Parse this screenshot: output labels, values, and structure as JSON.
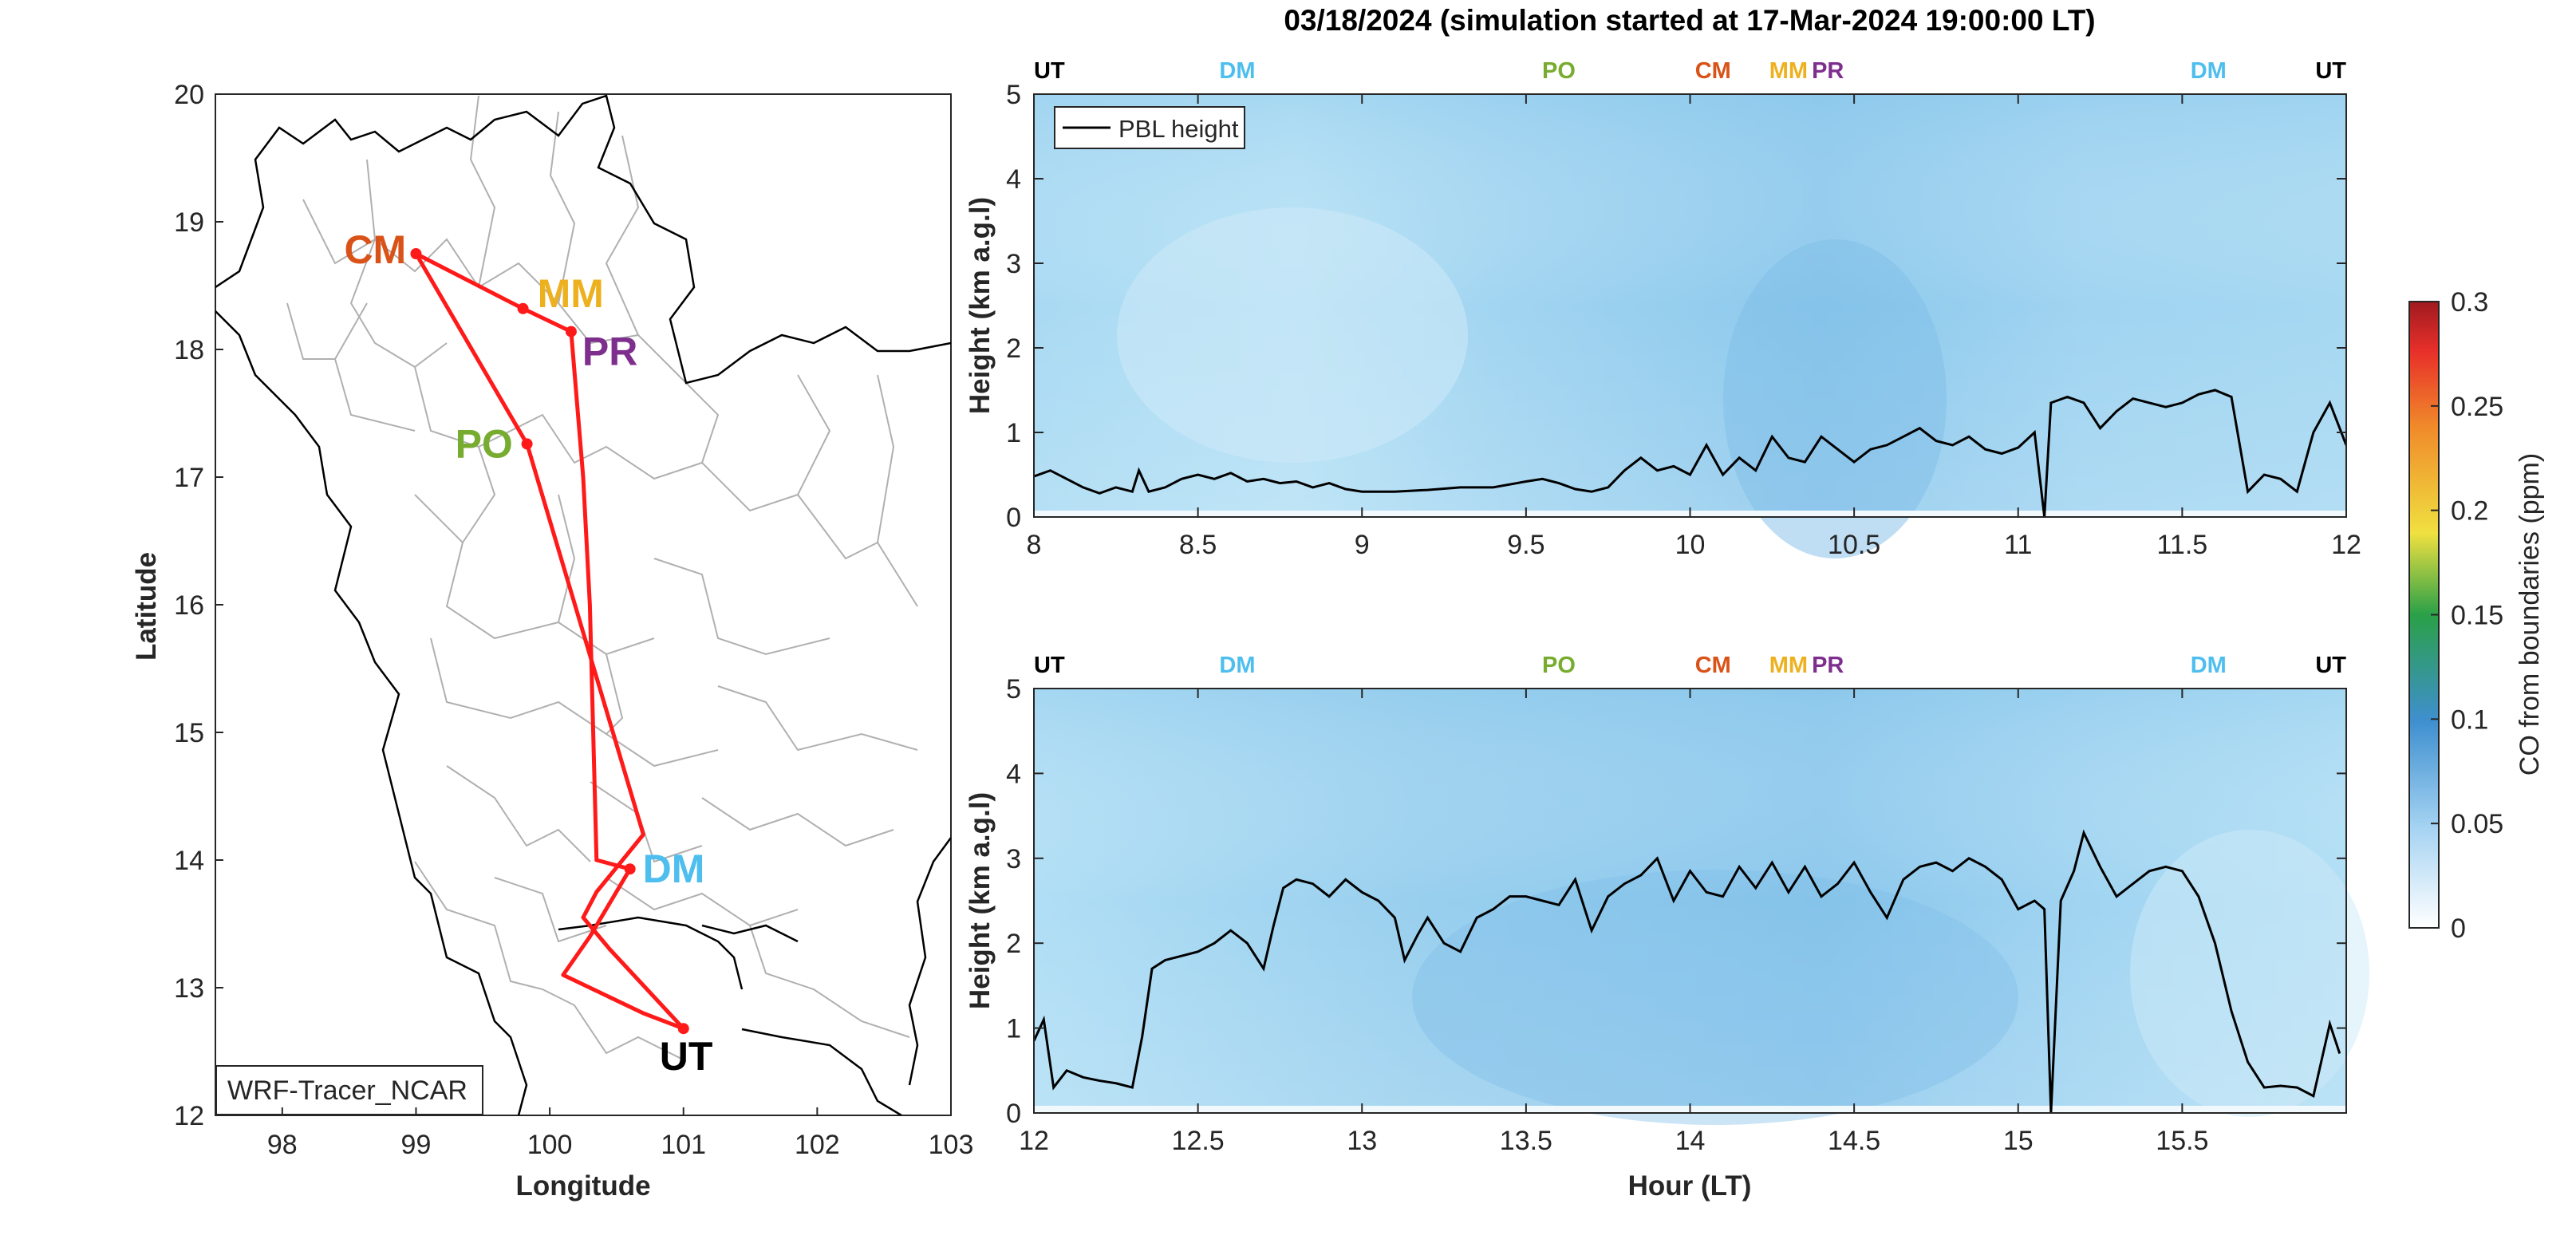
{
  "title": "03/18/2024 (simulation started at 17-Mar-2024 19:00:00 LT)",
  "colors": {
    "CM": "#d95319",
    "MM": "#edb120",
    "PR": "#7e2f8e",
    "PO": "#77ac30",
    "DM": "#4dbeee",
    "UT": "#000000",
    "route": "#ff1a1a",
    "pbl": "#000000"
  },
  "map": {
    "xlabel": "Longitude",
    "ylabel": "Latitude",
    "xlim": [
      97.5,
      103
    ],
    "ylim": [
      12,
      20
    ],
    "xticks": [
      "98",
      "99",
      "100",
      "101",
      "102",
      "103"
    ],
    "yticks": [
      "12",
      "13",
      "14",
      "15",
      "16",
      "17",
      "18",
      "19",
      "20"
    ],
    "model_label": "WRF-Tracer_NCAR",
    "sites": [
      {
        "code": "CM",
        "lon": 99.0,
        "lat": 18.75
      },
      {
        "code": "MM",
        "lon": 99.8,
        "lat": 18.32
      },
      {
        "code": "PR",
        "lon": 100.16,
        "lat": 18.14
      },
      {
        "code": "PO",
        "lon": 99.83,
        "lat": 17.26
      },
      {
        "code": "DM",
        "lon": 100.6,
        "lat": 13.93
      },
      {
        "code": "UT",
        "lon": 101.0,
        "lat": 12.68
      }
    ],
    "route": [
      [
        101.0,
        12.68
      ],
      [
        100.45,
        13.3
      ],
      [
        100.25,
        13.55
      ],
      [
        100.35,
        13.75
      ],
      [
        100.7,
        14.2
      ],
      [
        99.83,
        17.26
      ],
      [
        99.0,
        18.75
      ],
      [
        99.8,
        18.32
      ],
      [
        100.16,
        18.14
      ],
      [
        100.25,
        17.0
      ],
      [
        100.3,
        16.0
      ],
      [
        100.35,
        14.0
      ],
      [
        100.6,
        13.93
      ],
      [
        100.3,
        13.4
      ],
      [
        100.1,
        13.1
      ],
      [
        100.7,
        12.8
      ],
      [
        101.0,
        12.68
      ]
    ]
  },
  "chart_data": [
    {
      "type": "heatmap",
      "xlabel": "",
      "ylabel": "Height (km a.g.l)",
      "xlim": [
        8,
        12
      ],
      "ylim": [
        0,
        5
      ],
      "xticks": [
        "8",
        "8.5",
        "9",
        "9.5",
        "10",
        "10.5",
        "11",
        "11.5",
        "12"
      ],
      "yticks": [
        "0",
        "1",
        "2",
        "3",
        "4",
        "5"
      ],
      "legend": "PBL height",
      "legend_position": "top-left",
      "top_markers": [
        {
          "label": "UT",
          "x": 8.0
        },
        {
          "label": "DM",
          "x": 8.62
        },
        {
          "label": "PO",
          "x": 9.6
        },
        {
          "label": "CM",
          "x": 10.07
        },
        {
          "label": "MM",
          "x": 10.3
        },
        {
          "label": "PR",
          "x": 10.42
        },
        {
          "label": "DM",
          "x": 11.58
        },
        {
          "label": "UT",
          "x": 12.0
        }
      ],
      "pbl_series": {
        "name": "PBL height",
        "x": [
          8.0,
          8.05,
          8.1,
          8.15,
          8.2,
          8.25,
          8.3,
          8.32,
          8.35,
          8.4,
          8.45,
          8.5,
          8.55,
          8.6,
          8.65,
          8.7,
          8.75,
          8.8,
          8.85,
          8.9,
          8.95,
          9.0,
          9.1,
          9.2,
          9.3,
          9.4,
          9.5,
          9.55,
          9.6,
          9.65,
          9.7,
          9.75,
          9.8,
          9.85,
          9.9,
          9.95,
          10.0,
          10.05,
          10.1,
          10.15,
          10.2,
          10.25,
          10.3,
          10.35,
          10.4,
          10.45,
          10.5,
          10.55,
          10.6,
          10.65,
          10.7,
          10.75,
          10.8,
          10.85,
          10.9,
          10.95,
          11.0,
          11.05,
          11.08,
          11.1,
          11.15,
          11.2,
          11.25,
          11.3,
          11.35,
          11.4,
          11.45,
          11.5,
          11.55,
          11.6,
          11.65,
          11.7,
          11.75,
          11.8,
          11.85,
          11.9,
          11.95,
          12.0
        ],
        "y": [
          0.48,
          0.55,
          0.45,
          0.35,
          0.28,
          0.35,
          0.3,
          0.55,
          0.3,
          0.35,
          0.45,
          0.5,
          0.45,
          0.52,
          0.42,
          0.45,
          0.4,
          0.42,
          0.35,
          0.4,
          0.33,
          0.3,
          0.3,
          0.32,
          0.35,
          0.35,
          0.42,
          0.45,
          0.4,
          0.33,
          0.3,
          0.35,
          0.55,
          0.7,
          0.55,
          0.6,
          0.5,
          0.85,
          0.5,
          0.7,
          0.55,
          0.95,
          0.7,
          0.65,
          0.95,
          0.8,
          0.65,
          0.8,
          0.85,
          0.95,
          1.05,
          0.9,
          0.85,
          0.95,
          0.8,
          0.75,
          0.82,
          1.0,
          0.0,
          1.35,
          1.42,
          1.35,
          1.05,
          1.25,
          1.4,
          1.35,
          1.3,
          1.35,
          1.45,
          1.5,
          1.42,
          0.3,
          0.5,
          0.45,
          0.3,
          1.0,
          1.35,
          0.85
        ]
      }
    },
    {
      "type": "heatmap",
      "xlabel": "Hour (LT)",
      "ylabel": "Height (km a.g.l)",
      "xlim": [
        12,
        16
      ],
      "ylim": [
        0,
        5
      ],
      "xticks": [
        "12",
        "12.5",
        "13",
        "13.5",
        "14",
        "14.5",
        "15",
        "15.5"
      ],
      "yticks": [
        "0",
        "1",
        "2",
        "3",
        "4",
        "5"
      ],
      "top_markers": [
        {
          "label": "UT",
          "x": 12.0
        },
        {
          "label": "DM",
          "x": 12.62
        },
        {
          "label": "PO",
          "x": 13.6
        },
        {
          "label": "CM",
          "x": 14.07
        },
        {
          "label": "MM",
          "x": 14.3
        },
        {
          "label": "PR",
          "x": 14.42
        },
        {
          "label": "DM",
          "x": 15.58
        },
        {
          "label": "UT",
          "x": 16.0
        }
      ],
      "pbl_series": {
        "name": "PBL height",
        "x": [
          12.0,
          12.03,
          12.06,
          12.1,
          12.15,
          12.2,
          12.25,
          12.3,
          12.33,
          12.36,
          12.4,
          12.45,
          12.5,
          12.55,
          12.6,
          12.65,
          12.7,
          12.73,
          12.76,
          12.8,
          12.85,
          12.9,
          12.95,
          13.0,
          13.05,
          13.1,
          13.13,
          13.17,
          13.2,
          13.25,
          13.3,
          13.35,
          13.4,
          13.45,
          13.5,
          13.55,
          13.6,
          13.65,
          13.7,
          13.75,
          13.8,
          13.85,
          13.9,
          13.95,
          14.0,
          14.05,
          14.1,
          14.15,
          14.2,
          14.25,
          14.3,
          14.35,
          14.4,
          14.45,
          14.5,
          14.55,
          14.6,
          14.65,
          14.7,
          14.75,
          14.8,
          14.85,
          14.9,
          14.95,
          15.0,
          15.05,
          15.08,
          15.1,
          15.13,
          15.17,
          15.2,
          15.25,
          15.3,
          15.35,
          15.4,
          15.45,
          15.5,
          15.55,
          15.6,
          15.65,
          15.7,
          15.75,
          15.8,
          15.85,
          15.9,
          15.95,
          15.98
        ],
        "y": [
          0.85,
          1.1,
          0.3,
          0.5,
          0.42,
          0.38,
          0.35,
          0.3,
          0.9,
          1.7,
          1.8,
          1.85,
          1.9,
          2.0,
          2.15,
          2.0,
          1.7,
          2.2,
          2.65,
          2.75,
          2.7,
          2.55,
          2.75,
          2.6,
          2.5,
          2.3,
          1.8,
          2.1,
          2.3,
          2.0,
          1.9,
          2.3,
          2.4,
          2.55,
          2.55,
          2.5,
          2.45,
          2.75,
          2.15,
          2.55,
          2.7,
          2.8,
          3.0,
          2.5,
          2.85,
          2.6,
          2.55,
          2.9,
          2.65,
          2.95,
          2.6,
          2.9,
          2.55,
          2.7,
          2.95,
          2.6,
          2.3,
          2.75,
          2.9,
          2.95,
          2.85,
          3.0,
          2.9,
          2.75,
          2.4,
          2.5,
          2.4,
          0.0,
          2.5,
          2.85,
          3.3,
          2.9,
          2.55,
          2.7,
          2.85,
          2.9,
          2.85,
          2.55,
          2.0,
          1.2,
          0.6,
          0.3,
          0.32,
          0.3,
          0.2,
          1.05,
          0.7
        ]
      }
    }
  ],
  "colorbar": {
    "label": "CO from boundaries (ppm)",
    "range": [
      0,
      0.3
    ],
    "ticks": [
      "0",
      "0.05",
      "0.1",
      "0.15",
      "0.2",
      "0.25",
      "0.3"
    ]
  }
}
